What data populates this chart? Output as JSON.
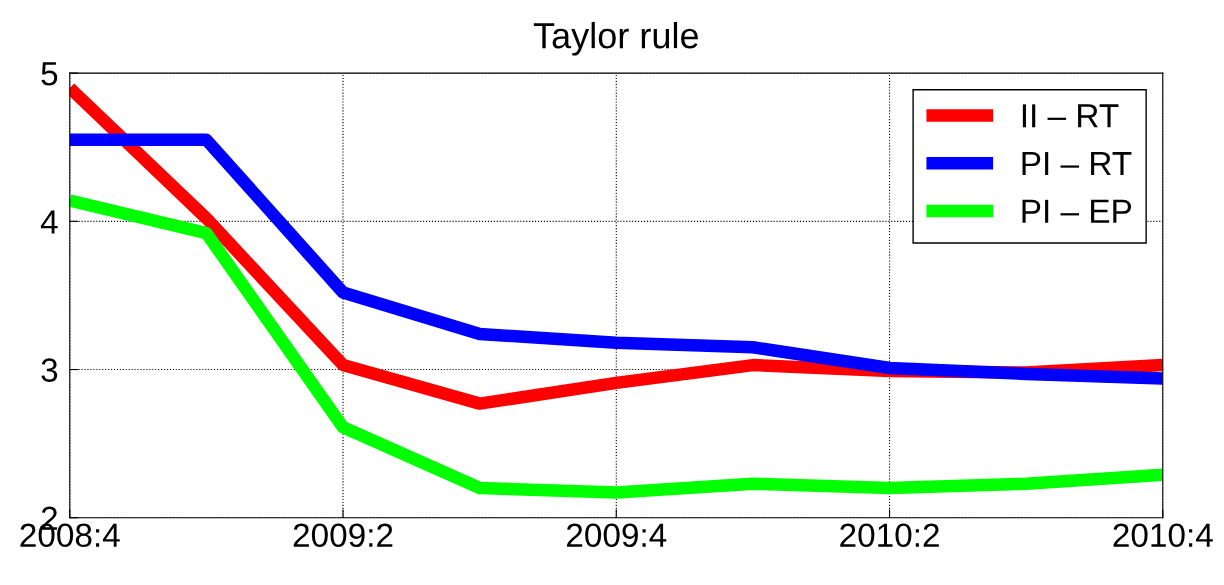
{
  "chart_data": {
    "type": "line",
    "title": "Taylor rule",
    "categories": [
      "2008:4",
      null,
      "2009:2",
      null,
      "2009:4",
      null,
      "2010:2",
      null,
      "2010:4"
    ],
    "series": [
      {
        "name": "II – RT",
        "color": "#ff0000",
        "values": [
          4.9,
          4.02,
          3.03,
          2.77,
          2.91,
          3.03,
          2.99,
          2.98,
          3.03
        ]
      },
      {
        "name": "PI – RT",
        "color": "#0000ff",
        "values": [
          4.55,
          4.55,
          3.52,
          3.24,
          3.18,
          3.15,
          3.01,
          2.97,
          2.94
        ]
      },
      {
        "name": "PI – EP",
        "color": "#00ff00",
        "values": [
          4.14,
          3.92,
          2.61,
          2.2,
          2.17,
          2.23,
          2.2,
          2.23,
          2.29
        ]
      }
    ],
    "ylim": [
      2,
      5
    ],
    "yticks": [
      2,
      3,
      4,
      5
    ],
    "grid": true,
    "legend": "top right",
    "line_style": "solid",
    "marker": "none"
  }
}
